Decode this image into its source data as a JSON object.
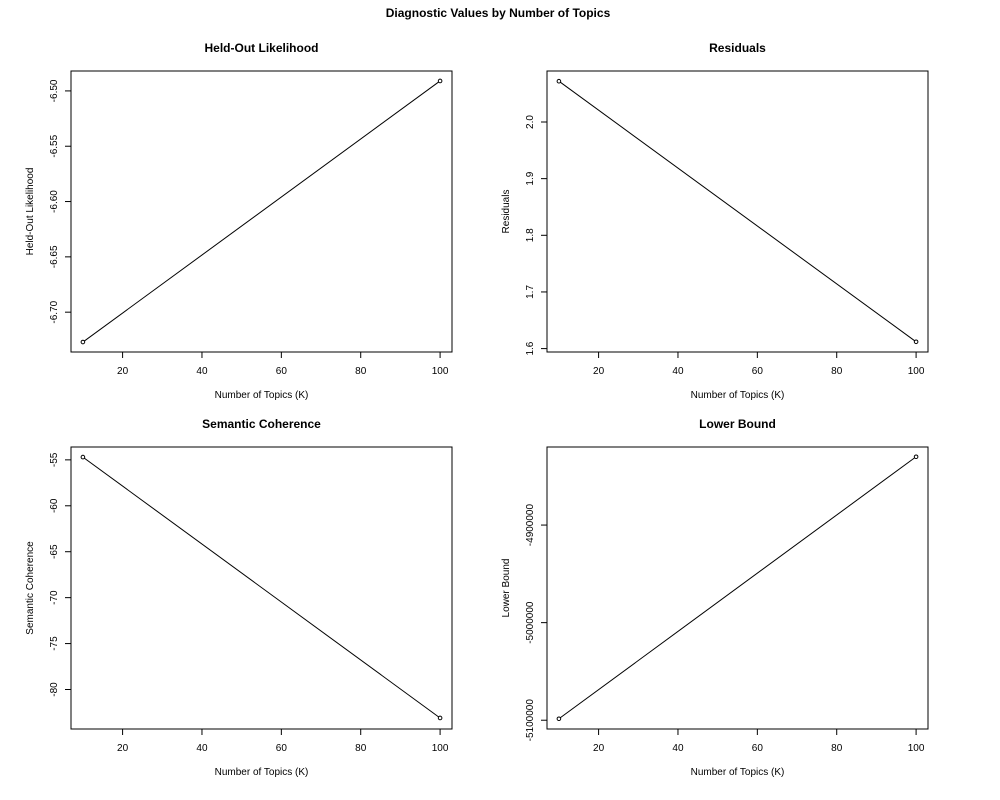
{
  "figure": {
    "title": "Diagnostic Values by Number of Topics"
  },
  "chart_data": [
    {
      "type": "line",
      "title": "Held-Out Likelihood",
      "xlabel": "Number of Topics (K)",
      "ylabel": "Held-Out Likelihood",
      "x": [
        10,
        100
      ],
      "y": [
        -6.727,
        -6.491
      ],
      "xlim": [
        7,
        103
      ],
      "ylim": [
        -6.736,
        -6.482
      ],
      "xticks": [
        20,
        40,
        60,
        80,
        100
      ],
      "yticks": [
        -6.7,
        -6.65,
        -6.6,
        -6.55,
        -6.5
      ],
      "yticklabels": [
        "-6.70",
        "-6.65",
        "-6.60",
        "-6.55",
        "-6.50"
      ],
      "grid": false
    },
    {
      "type": "line",
      "title": "Residuals",
      "xlabel": "Number of Topics (K)",
      "ylabel": "Residuals",
      "x": [
        10,
        100
      ],
      "y": [
        2.072,
        1.612
      ],
      "xlim": [
        7,
        103
      ],
      "ylim": [
        1.594,
        2.09
      ],
      "xticks": [
        20,
        40,
        60,
        80,
        100
      ],
      "yticks": [
        1.6,
        1.7,
        1.8,
        1.9,
        2.0
      ],
      "yticklabels": [
        "1.6",
        "1.7",
        "1.8",
        "1.9",
        "2.0"
      ],
      "grid": false
    },
    {
      "type": "line",
      "title": "Semantic Coherence",
      "xlabel": "Number of Topics (K)",
      "ylabel": "Semantic Coherence",
      "x": [
        10,
        100
      ],
      "y": [
        -54.7,
        -83.1
      ],
      "xlim": [
        7,
        103
      ],
      "ylim": [
        -84.3,
        -53.6
      ],
      "xticks": [
        20,
        40,
        60,
        80,
        100
      ],
      "yticks": [
        -80,
        -75,
        -70,
        -65,
        -60,
        -55
      ],
      "yticklabels": [
        "-80",
        "-75",
        "-70",
        "-65",
        "-60",
        "-55"
      ],
      "grid": false
    },
    {
      "type": "line",
      "title": "Lower Bound",
      "xlabel": "Number of Topics (K)",
      "ylabel": "Lower Bound",
      "x": [
        10,
        100
      ],
      "y": [
        -5098500,
        -4830000
      ],
      "xlim": [
        7,
        103
      ],
      "ylim": [
        -5109000,
        -4820000
      ],
      "xticks": [
        20,
        40,
        60,
        80,
        100
      ],
      "yticks": [
        -5100000,
        -5000000,
        -4900000
      ],
      "yticklabels": [
        "-5100000",
        "-5000000",
        "-4900000"
      ],
      "grid": false
    }
  ]
}
